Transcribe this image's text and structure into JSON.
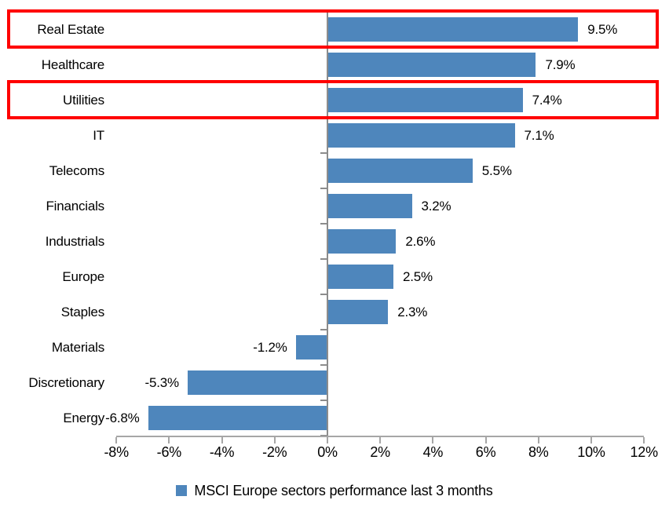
{
  "chart_data": {
    "type": "bar",
    "orientation": "horizontal",
    "categories": [
      "Real Estate",
      "Healthcare",
      "Utilities",
      "IT",
      "Telecoms",
      "Financials",
      "Industrials",
      "Europe",
      "Staples",
      "Materials",
      "Discretionary",
      "Energy"
    ],
    "values": [
      9.5,
      7.9,
      7.4,
      7.1,
      5.5,
      3.2,
      2.6,
      2.5,
      2.3,
      -1.2,
      -5.3,
      -6.8
    ],
    "value_labels": [
      "9.5%",
      "7.9%",
      "7.4%",
      "7.1%",
      "5.5%",
      "3.2%",
      "2.6%",
      "2.5%",
      "2.3%",
      "-1.2%",
      "-5.3%",
      "-6.8%"
    ],
    "x_tick_values": [
      -8,
      -6,
      -4,
      -2,
      0,
      2,
      4,
      6,
      8,
      10,
      12
    ],
    "x_tick_labels": [
      "-8%",
      "-6%",
      "-4%",
      "-2%",
      "0%",
      "2%",
      "4%",
      "6%",
      "8%",
      "10%",
      "12%"
    ],
    "xlim": [
      -8,
      12
    ],
    "grid": false,
    "legend_position": "bottom",
    "legend_label": "MSCI Europe sectors performance last 3 months",
    "highlighted_categories": [
      "Real Estate",
      "Utilities"
    ],
    "colors": {
      "bar": "#4e86bc",
      "axis": "#a6a6a6",
      "category_axis": "#8c8c8c",
      "highlight_border": "#ff0000",
      "text": "#000000"
    }
  }
}
